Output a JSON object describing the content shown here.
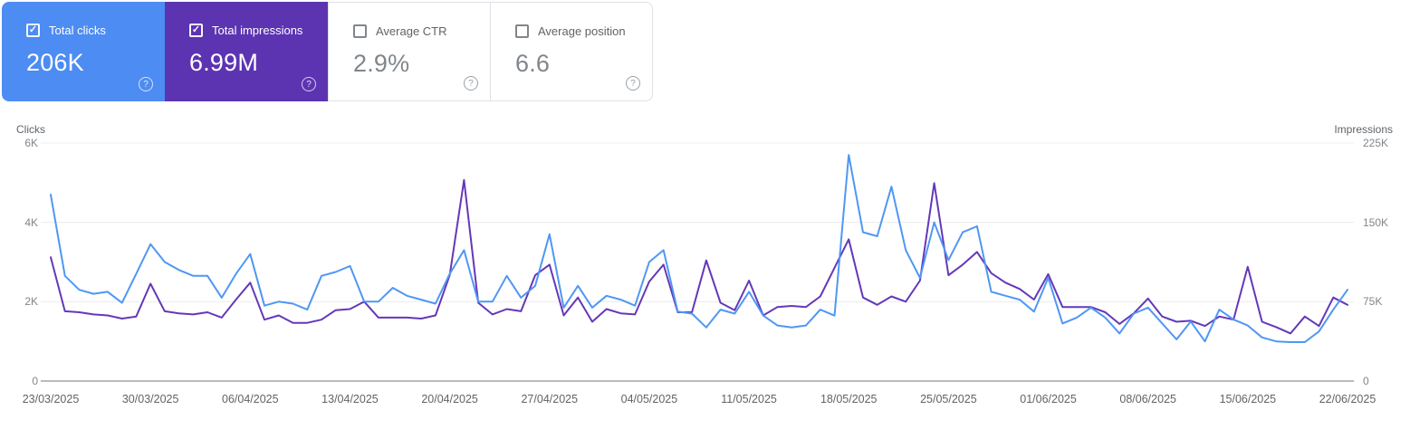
{
  "icons": {
    "help": "?",
    "check": "✓"
  },
  "cards": [
    {
      "label": "Total clicks",
      "value": "206K",
      "checked": true,
      "selected": true,
      "color": "#4d8cf2"
    },
    {
      "label": "Total impressions",
      "value": "6.99M",
      "checked": true,
      "selected": true,
      "color": "#5c34b2"
    },
    {
      "label": "Average CTR",
      "value": "2.9%",
      "checked": false,
      "selected": false,
      "color": "#ffffff"
    },
    {
      "label": "Average position",
      "value": "6.6",
      "checked": false,
      "selected": false,
      "color": "#ffffff"
    }
  ],
  "chart_data": {
    "type": "line",
    "grid": true,
    "grid_color": "#ececec",
    "axis_color": "#b7bbbf",
    "left_axis": {
      "title": "Clicks",
      "max": 6000,
      "ticks": [
        "6K",
        "4K",
        "2K",
        "0"
      ]
    },
    "right_axis": {
      "title": "Impressions",
      "max": 225000,
      "ticks": [
        "225K",
        "150K",
        "75K",
        "0"
      ]
    },
    "x_tick_labels": [
      "23/03/2025",
      "30/03/2025",
      "06/04/2025",
      "13/04/2025",
      "20/04/2025",
      "27/04/2025",
      "04/05/2025",
      "11/05/2025",
      "18/05/2025",
      "25/05/2025",
      "01/06/2025",
      "08/06/2025",
      "15/06/2025",
      "22/06/2025"
    ],
    "x_range": [
      "23/03/2025",
      "22/06/2025"
    ],
    "series": [
      {
        "name": "Total clicks",
        "axis": "left",
        "color": "#4f97f4",
        "values": [
          4700,
          2650,
          2300,
          2200,
          2250,
          1970,
          2700,
          3450,
          3000,
          2800,
          2650,
          2650,
          2100,
          2700,
          3200,
          1900,
          2000,
          1950,
          1800,
          2650,
          2750,
          2900,
          2000,
          2000,
          2350,
          2150,
          2050,
          1950,
          2700,
          3300,
          2000,
          2000,
          2650,
          2100,
          2400,
          3700,
          1850,
          2400,
          1850,
          2150,
          2050,
          1900,
          3000,
          3300,
          1750,
          1700,
          1350,
          1800,
          1700,
          2250,
          1650,
          1400,
          1350,
          1400,
          1800,
          1650,
          5700,
          3750,
          3650,
          4900,
          3300,
          2600,
          4000,
          3050,
          3750,
          3900,
          2250,
          2150,
          2050,
          1750,
          2600,
          1450,
          1600,
          1850,
          1600,
          1200,
          1700,
          1850,
          1450,
          1050,
          1500,
          1000,
          1800,
          1550,
          1400,
          1100,
          1000,
          980,
          980,
          1250,
          1800,
          2300
        ]
      },
      {
        "name": "Total impressions",
        "axis": "right",
        "color": "#6438b8",
        "values": [
          117000,
          66000,
          65000,
          63000,
          62000,
          59000,
          61000,
          92000,
          66000,
          64000,
          63000,
          65000,
          60000,
          77000,
          93000,
          58000,
          62000,
          55000,
          55000,
          58000,
          67000,
          68000,
          75000,
          60000,
          60000,
          60000,
          59000,
          62000,
          100000,
          190000,
          74000,
          63000,
          68000,
          66000,
          100000,
          110000,
          62000,
          79000,
          56000,
          68000,
          64000,
          63000,
          94000,
          110000,
          65000,
          65000,
          114000,
          74000,
          67000,
          95000,
          62000,
          70000,
          71000,
          70000,
          80000,
          107000,
          134000,
          79000,
          72000,
          80000,
          75000,
          95000,
          187000,
          100000,
          110000,
          122000,
          102000,
          93000,
          87000,
          77000,
          101000,
          70000,
          70000,
          70000,
          65000,
          54000,
          64000,
          78000,
          61000,
          56000,
          57000,
          52000,
          61000,
          58000,
          108000,
          56000,
          51000,
          45000,
          61000,
          52000,
          79000,
          72000
        ]
      }
    ]
  }
}
